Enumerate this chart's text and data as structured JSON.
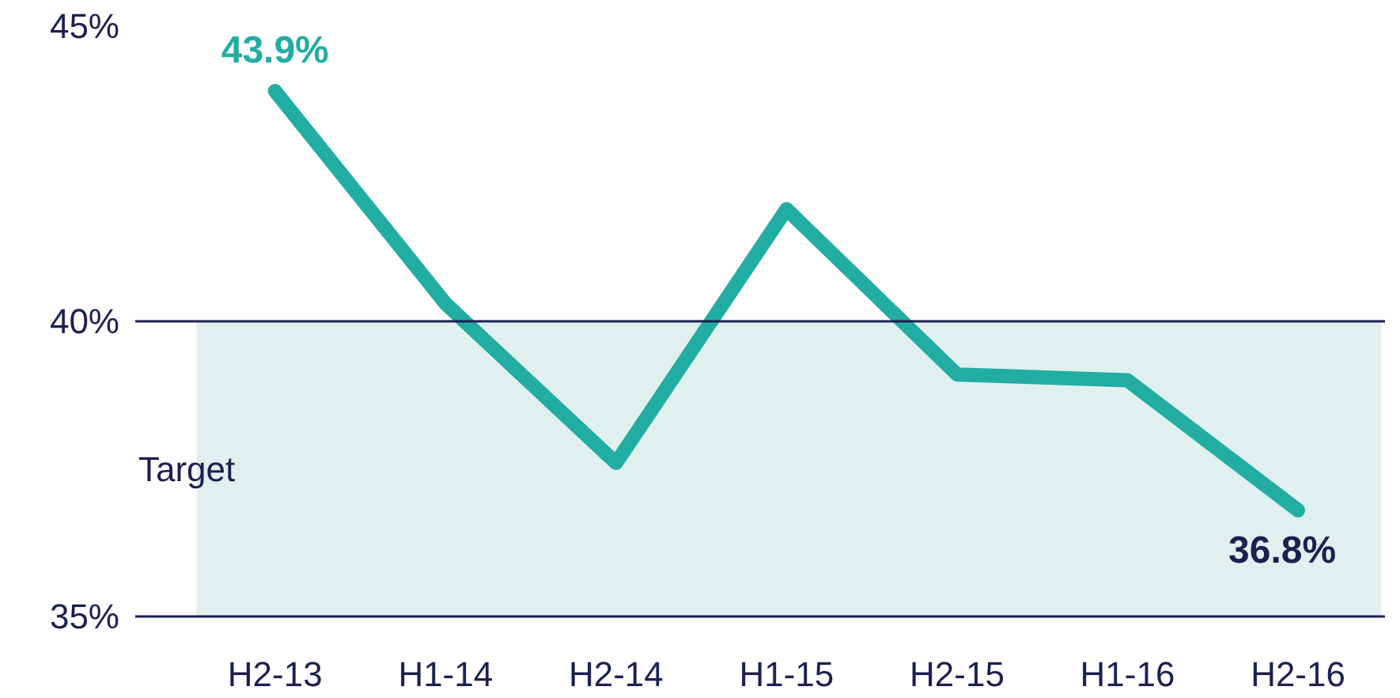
{
  "chart_data": {
    "type": "line",
    "categories": [
      "H2-13",
      "H1-14",
      "H2-14",
      "H1-15",
      "H2-15",
      "H1-16",
      "H2-16"
    ],
    "series": [
      {
        "color": "#22ada3",
        "values": [
          43.9,
          40.3,
          37.6,
          41.9,
          39.1,
          39.0,
          36.8
        ],
        "value_labels": [
          "43.9%",
          null,
          null,
          null,
          null,
          null,
          "36.8%"
        ]
      }
    ],
    "ylim": [
      35,
      45
    ],
    "yticks": [
      {
        "value": 35,
        "label": "35%"
      },
      {
        "value": 40,
        "label": "40%"
      },
      {
        "value": 45,
        "label": "45%"
      }
    ],
    "bands": [
      {
        "axis": "y",
        "from": 35,
        "to": 40,
        "label": "Target",
        "color": "#dff0ef"
      }
    ],
    "ref_lines": [
      {
        "axis": "y",
        "value": 40,
        "color": "#1a2150"
      }
    ],
    "grid": false,
    "marker": "none",
    "line_style": "solid"
  }
}
